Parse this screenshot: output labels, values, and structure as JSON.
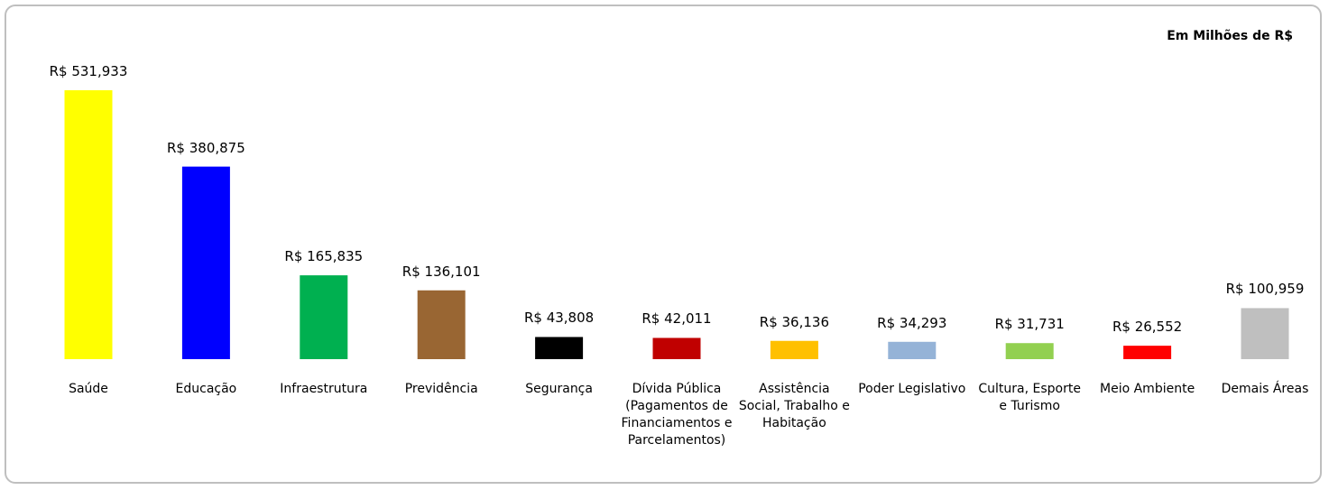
{
  "chart_data": {
    "type": "bar",
    "title": "Em Milhões de R$",
    "categories": [
      "Saúde",
      "Educação",
      "Infraestrutura",
      "Previdência",
      "Segurança",
      "Dívida Pública (Pagamentos de Financiamentos e Parcelamentos)",
      "Assistência Social, Trabalho e Habitação",
      "Poder Legislativo",
      "Cultura, Esporte e Turismo",
      "Meio Ambiente",
      "Demais Áreas"
    ],
    "values": [
      531.933,
      380.875,
      165.835,
      136.101,
      43.808,
      42.011,
      36.136,
      34.293,
      31.731,
      26.552,
      100.959
    ],
    "value_labels": [
      "R$ 531,933",
      "R$ 380,875",
      "R$ 165,835",
      "R$ 136,101",
      "R$ 43,808",
      "R$ 42,011",
      "R$ 36,136",
      "R$ 34,293",
      "R$ 31,731",
      "R$ 26,552",
      "R$ 100,959"
    ],
    "colors": [
      "#ffff00",
      "#0000ff",
      "#00b050",
      "#996633",
      "#000000",
      "#c00000",
      "#ffc000",
      "#95b3d7",
      "#92d050",
      "#ff0000",
      "#bfbfbf"
    ]
  }
}
